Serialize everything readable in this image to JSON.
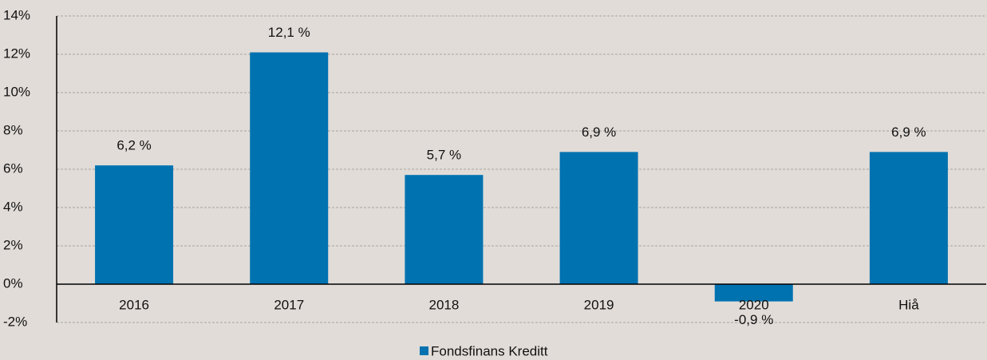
{
  "chart_data": {
    "type": "bar",
    "categories": [
      "2016",
      "2017",
      "2018",
      "2019",
      "2020",
      "Hiå"
    ],
    "series": [
      {
        "name": "Fondsfinans Kreditt",
        "color": "#0072b0",
        "values": [
          6.2,
          12.1,
          5.7,
          6.9,
          -0.9,
          6.9
        ],
        "value_labels": [
          "6,2 %",
          "12,1 %",
          "5,7 %",
          "6,9 %",
          "-0,9 %",
          "6,9 %"
        ]
      }
    ],
    "ylim": [
      -2,
      14
    ],
    "yticks": [
      {
        "value": -2,
        "label": "-2%"
      },
      {
        "value": 0,
        "label": "0%"
      },
      {
        "value": 2,
        "label": "2%"
      },
      {
        "value": 4,
        "label": "4%"
      },
      {
        "value": 6,
        "label": "6%"
      },
      {
        "value": 8,
        "label": "8%"
      },
      {
        "value": 10,
        "label": "10%"
      },
      {
        "value": 12,
        "label": "12%"
      },
      {
        "value": 14,
        "label": "14%"
      }
    ],
    "grid": true,
    "legend": "bottom"
  }
}
